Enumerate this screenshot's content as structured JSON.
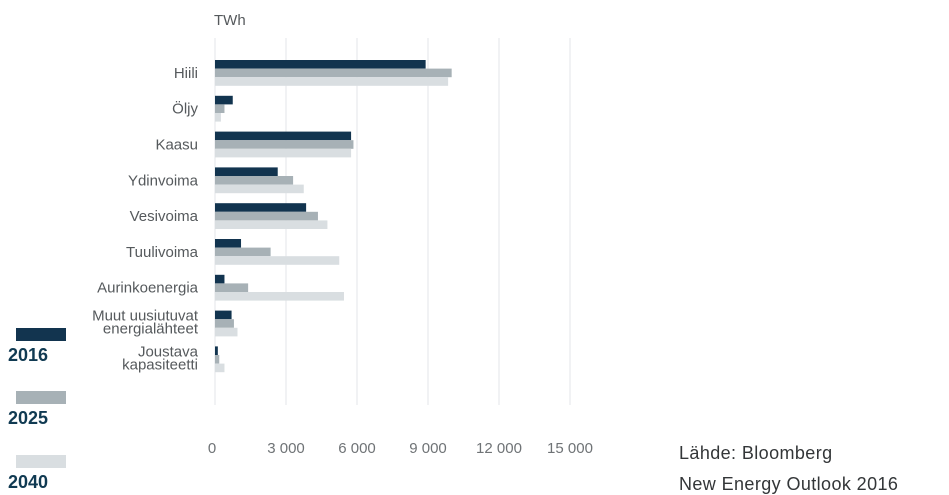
{
  "chart_data": {
    "type": "bar",
    "orientation": "horizontal",
    "unit_label": "TWh",
    "categories": [
      [
        "Hiili"
      ],
      [
        "Öljy"
      ],
      [
        "Kaasu"
      ],
      [
        "Ydinvoima"
      ],
      [
        "Vesivoima"
      ],
      [
        "Tuulivoima"
      ],
      [
        "Aurinkoenergia"
      ],
      [
        "Muut uusiutuvat",
        "energialähteet"
      ],
      [
        "Joustava",
        "kapasiteetti"
      ]
    ],
    "series": [
      {
        "name": "2016",
        "color": "#12344f",
        "values": [
          8900,
          750,
          5750,
          2650,
          3850,
          1100,
          400,
          700,
          120
        ]
      },
      {
        "name": "2025",
        "color": "#a7b1b6",
        "values": [
          10000,
          400,
          5850,
          3300,
          4350,
          2350,
          1400,
          800,
          180
        ]
      },
      {
        "name": "2040",
        "color": "#d9dee1",
        "values": [
          9850,
          250,
          5750,
          3750,
          4750,
          5250,
          5450,
          950,
          400
        ]
      }
    ],
    "x_ticks": [
      "0",
      "3 000",
      "6 000",
      "9 000",
      "12 000",
      "15 000"
    ],
    "xlim": [
      0,
      15000
    ],
    "grid": true,
    "legend_position": "left"
  },
  "source": {
    "line1": "Lähde: Bloomberg",
    "line2": "New Energy Outlook 2016"
  }
}
